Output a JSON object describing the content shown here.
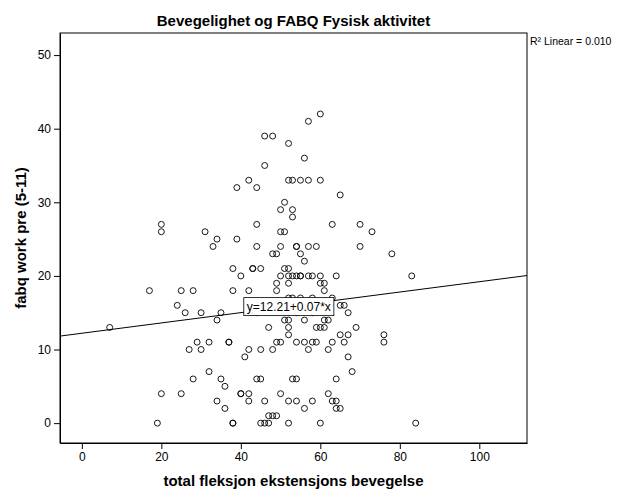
{
  "chart_data": {
    "type": "scatter",
    "title": "Bevegelighet og FABQ Fysisk aktivitet",
    "x_label": "total fleksjon ekstensjons bevegelse",
    "y_label": "fabq work pre (5-11)",
    "annotations": [
      "R² Linear = 0.010"
    ],
    "fit": {
      "intercept": 12.21,
      "slope": 0.07,
      "label": "y=12.21+0.07*x"
    },
    "marker": "circle",
    "color": "#000000",
    "xlim": [
      -5.5,
      112
    ],
    "ylim": [
      -2.7,
      53
    ],
    "xticks": [
      0,
      20,
      40,
      60,
      80,
      100
    ],
    "yticks": [
      0,
      10,
      20,
      30,
      40,
      50
    ],
    "grid": false,
    "x": [
      7,
      17,
      19,
      20,
      20,
      20,
      24,
      25,
      25,
      26,
      27,
      28,
      28,
      29,
      30,
      30,
      31,
      32,
      32,
      33,
      34,
      34,
      34,
      35,
      35,
      36,
      36,
      37,
      37,
      38,
      38,
      38,
      38,
      39,
      39,
      40,
      40,
      40,
      41,
      42,
      42,
      42,
      42,
      42,
      43,
      43,
      44,
      44,
      44,
      44,
      44,
      45,
      45,
      45,
      45,
      46,
      46,
      46,
      46,
      47,
      47,
      47,
      48,
      48,
      48,
      48,
      49,
      49,
      49,
      49,
      49,
      49,
      50,
      50,
      50,
      50,
      50,
      50,
      51,
      51,
      51,
      51,
      52,
      52,
      52,
      52,
      52,
      52,
      52,
      52,
      52,
      52,
      52,
      53,
      53,
      53,
      53,
      53,
      53,
      53,
      54,
      54,
      54,
      54,
      54,
      54,
      54,
      55,
      55,
      55,
      55,
      55,
      56,
      56,
      56,
      56,
      56,
      56,
      57,
      57,
      57,
      57,
      57,
      58,
      58,
      58,
      58,
      58,
      59,
      59,
      59,
      59,
      60,
      60,
      60,
      60,
      60,
      60,
      61,
      61,
      61,
      61,
      62,
      62,
      62,
      62,
      63,
      63,
      63,
      63,
      64,
      64,
      64,
      64,
      65,
      65,
      65,
      65,
      66,
      66,
      67,
      67,
      67,
      68,
      69,
      70,
      70,
      73,
      76,
      76,
      78,
      83,
      84
    ],
    "y": [
      13,
      18,
      0,
      27,
      26,
      4,
      16,
      18,
      4,
      15,
      10,
      6,
      18,
      11,
      15,
      10,
      26,
      7,
      11,
      24,
      25,
      14,
      3,
      6,
      15,
      5,
      2,
      11,
      11,
      0,
      0,
      21,
      18,
      25,
      32,
      20,
      4,
      4,
      9,
      10,
      33,
      18,
      4,
      3,
      21,
      21,
      24,
      6,
      32,
      27,
      15,
      21,
      0,
      6,
      10,
      0,
      39,
      35,
      3,
      13,
      1,
      0,
      39,
      23,
      10,
      1,
      23,
      1,
      11,
      16,
      18,
      19,
      29,
      26,
      24,
      20,
      11,
      4,
      30,
      26,
      21,
      14,
      38,
      33,
      20,
      17,
      13,
      14,
      12,
      0,
      3,
      21,
      19,
      33,
      29,
      28,
      20,
      17,
      16,
      6,
      24,
      24,
      20,
      15,
      11,
      6,
      3,
      33,
      23,
      20,
      17,
      20,
      36,
      22,
      14,
      2,
      11,
      16,
      41,
      33,
      24,
      20,
      10,
      20,
      17,
      15,
      11,
      3,
      16,
      13,
      11,
      24,
      42,
      33,
      20,
      19,
      13,
      0,
      19,
      14,
      13,
      18,
      10,
      16,
      14,
      4,
      11,
      27,
      17,
      3,
      6,
      2,
      3,
      20,
      31,
      16,
      12,
      2,
      16,
      11,
      12,
      15,
      9,
      7,
      13,
      27,
      24,
      26,
      12,
      11,
      23,
      20,
      0
    ]
  }
}
